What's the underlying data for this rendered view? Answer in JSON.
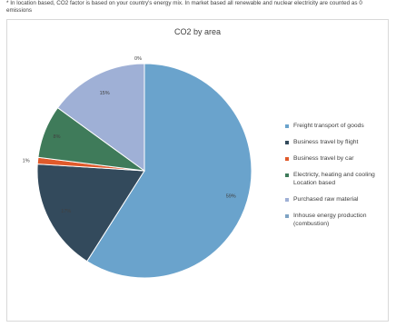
{
  "footnote": "* In location based, CO2 factor is based on your country's energy mix. In market based all renewable and nuclear electricity are counted as 0 emissions",
  "chart_data": {
    "type": "pie",
    "title": "CO2 by area",
    "legend_position": "right",
    "slices": [
      {
        "name": "Freight transport of goods",
        "value": 59,
        "label": "59%",
        "color": "#6aa3cc"
      },
      {
        "name": "Business travel by flight",
        "value": 17,
        "label": "17%",
        "color": "#334a5c"
      },
      {
        "name": "Business travel by car",
        "value": 1,
        "label": "1%",
        "color": "#e05a2b"
      },
      {
        "name": "Electricty, heating and cooling Location based",
        "value": 8,
        "label": "8%",
        "color": "#3f7b5a"
      },
      {
        "name": "Purchased raw material",
        "value": 15,
        "label": "15%",
        "color": "#9fb0d6"
      },
      {
        "name": "Inhouse energy production (combustion)",
        "value": 0,
        "label": "0%",
        "color": "#7ea3c4"
      }
    ]
  }
}
